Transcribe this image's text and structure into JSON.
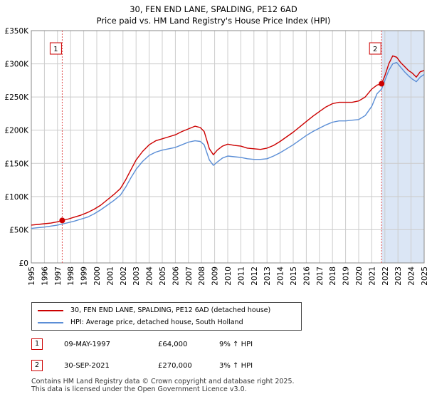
{
  "title": "30, FEN END LANE, SPALDING, PE12 6AD",
  "subtitle": "Price paid vs. HM Land Registry's House Price Index (HPI)",
  "colors": {
    "property": "#cc0000",
    "hpi": "#5b8ed6",
    "shade": "#dbe6f5",
    "grid": "#cccccc"
  },
  "chart_data": {
    "type": "line",
    "ylim": [
      0,
      350000
    ],
    "xlim": [
      1995,
      2025
    ],
    "yticks": [
      0,
      50000,
      100000,
      150000,
      200000,
      250000,
      300000,
      350000
    ],
    "ytick_labels": [
      "£0",
      "£50K",
      "£100K",
      "£150K",
      "£200K",
      "£250K",
      "£300K",
      "£350K"
    ],
    "xtick_labels": [
      "1995",
      "1996",
      "1997",
      "1998",
      "1999",
      "2000",
      "2001",
      "2002",
      "2003",
      "2004",
      "2005",
      "2006",
      "2007",
      "2008",
      "2009",
      "2010",
      "2011",
      "2012",
      "2013",
      "2014",
      "2015",
      "2016",
      "2017",
      "2018",
      "2019",
      "2020",
      "2021",
      "2022",
      "2023",
      "2024",
      "2025"
    ],
    "series": [
      {
        "name": "30, FEN END LANE, SPALDING, PE12 6AD (detached house)",
        "x": [
          1995.0,
          1995.5,
          1996.0,
          1996.5,
          1997.0,
          1997.35,
          1997.8,
          1998.3,
          1998.8,
          1999.3,
          1999.8,
          2000.3,
          2000.8,
          2001.3,
          2001.8,
          2002.2,
          2002.6,
          2003.0,
          2003.5,
          2004.0,
          2004.5,
          2005.0,
          2005.5,
          2006.0,
          2006.5,
          2007.0,
          2007.5,
          2007.9,
          2008.2,
          2008.6,
          2008.9,
          2009.2,
          2009.6,
          2010.0,
          2010.5,
          2011.0,
          2011.5,
          2012.0,
          2012.5,
          2013.0,
          2013.5,
          2014.0,
          2014.5,
          2015.0,
          2015.5,
          2016.0,
          2016.5,
          2017.0,
          2017.5,
          2018.0,
          2018.5,
          2019.0,
          2019.5,
          2020.0,
          2020.5,
          2021.0,
          2021.4,
          2021.75,
          2022.0,
          2022.3,
          2022.6,
          2022.9,
          2023.2,
          2023.5,
          2023.8,
          2024.1,
          2024.4,
          2024.7,
          2025.0
        ],
        "values": [
          57000,
          58000,
          59000,
          60000,
          62000,
          64000,
          66000,
          69000,
          72000,
          76000,
          81000,
          87000,
          95000,
          103000,
          112000,
          125000,
          140000,
          155000,
          168000,
          178000,
          184000,
          187000,
          190000,
          193000,
          198000,
          202000,
          206000,
          204000,
          198000,
          172000,
          163000,
          170000,
          176000,
          179000,
          177000,
          176000,
          173000,
          172000,
          171000,
          173000,
          177000,
          183000,
          190000,
          197000,
          205000,
          213000,
          221000,
          228000,
          235000,
          240000,
          242000,
          242000,
          242000,
          244000,
          250000,
          262000,
          268000,
          270000,
          282000,
          300000,
          312000,
          310000,
          302000,
          296000,
          290000,
          286000,
          280000,
          288000,
          290000
        ]
      },
      {
        "name": "HPI: Average price, detached house, South Holland",
        "x": [
          1995.0,
          1995.5,
          1996.0,
          1996.5,
          1997.0,
          1997.35,
          1997.8,
          1998.3,
          1998.8,
          1999.3,
          1999.8,
          2000.3,
          2000.8,
          2001.3,
          2001.8,
          2002.2,
          2002.6,
          2003.0,
          2003.5,
          2004.0,
          2004.5,
          2005.0,
          2005.5,
          2006.0,
          2006.5,
          2007.0,
          2007.5,
          2007.9,
          2008.2,
          2008.6,
          2008.9,
          2009.2,
          2009.6,
          2010.0,
          2010.5,
          2011.0,
          2011.5,
          2012.0,
          2012.5,
          2013.0,
          2013.5,
          2014.0,
          2014.5,
          2015.0,
          2015.5,
          2016.0,
          2016.5,
          2017.0,
          2017.5,
          2018.0,
          2018.5,
          2019.0,
          2019.5,
          2020.0,
          2020.5,
          2021.0,
          2021.4,
          2021.75,
          2022.0,
          2022.3,
          2022.6,
          2022.9,
          2023.2,
          2023.5,
          2023.8,
          2024.1,
          2024.4,
          2024.7,
          2025.0
        ],
        "values": [
          52000,
          53000,
          54000,
          55500,
          57000,
          58500,
          60500,
          63000,
          66000,
          69000,
          74000,
          80000,
          87000,
          94000,
          102000,
          114000,
          128000,
          141000,
          153000,
          162000,
          167000,
          170000,
          172000,
          174000,
          178000,
          182000,
          184000,
          183000,
          178000,
          155000,
          147000,
          152000,
          158000,
          161000,
          160000,
          159000,
          157000,
          156000,
          156000,
          157000,
          161000,
          166000,
          172000,
          178000,
          185000,
          192000,
          198000,
          203000,
          208000,
          212000,
          214000,
          214000,
          215000,
          216000,
          222000,
          236000,
          255000,
          262000,
          275000,
          290000,
          300000,
          302000,
          295000,
          288000,
          282000,
          277000,
          273000,
          280000,
          284000
        ]
      }
    ],
    "transactions": [
      {
        "label": "1",
        "x": 1997.36,
        "value": 64000
      },
      {
        "label": "2",
        "x": 2021.75,
        "value": 270000
      }
    ],
    "shaded_from": 2021.75
  },
  "legend": {
    "property": "30, FEN END LANE, SPALDING, PE12 6AD (detached house)",
    "hpi": "HPI: Average price, detached house, South Holland"
  },
  "transactions_table": [
    {
      "num": "1",
      "date": "09-MAY-1997",
      "price": "£64,000",
      "hpi": "9% ↑ HPI"
    },
    {
      "num": "2",
      "date": "30-SEP-2021",
      "price": "£270,000",
      "hpi": "3% ↑ HPI"
    }
  ],
  "footer": {
    "line1": "Contains HM Land Registry data © Crown copyright and database right 2025.",
    "line2": "This data is licensed under the Open Government Licence v3.0."
  }
}
